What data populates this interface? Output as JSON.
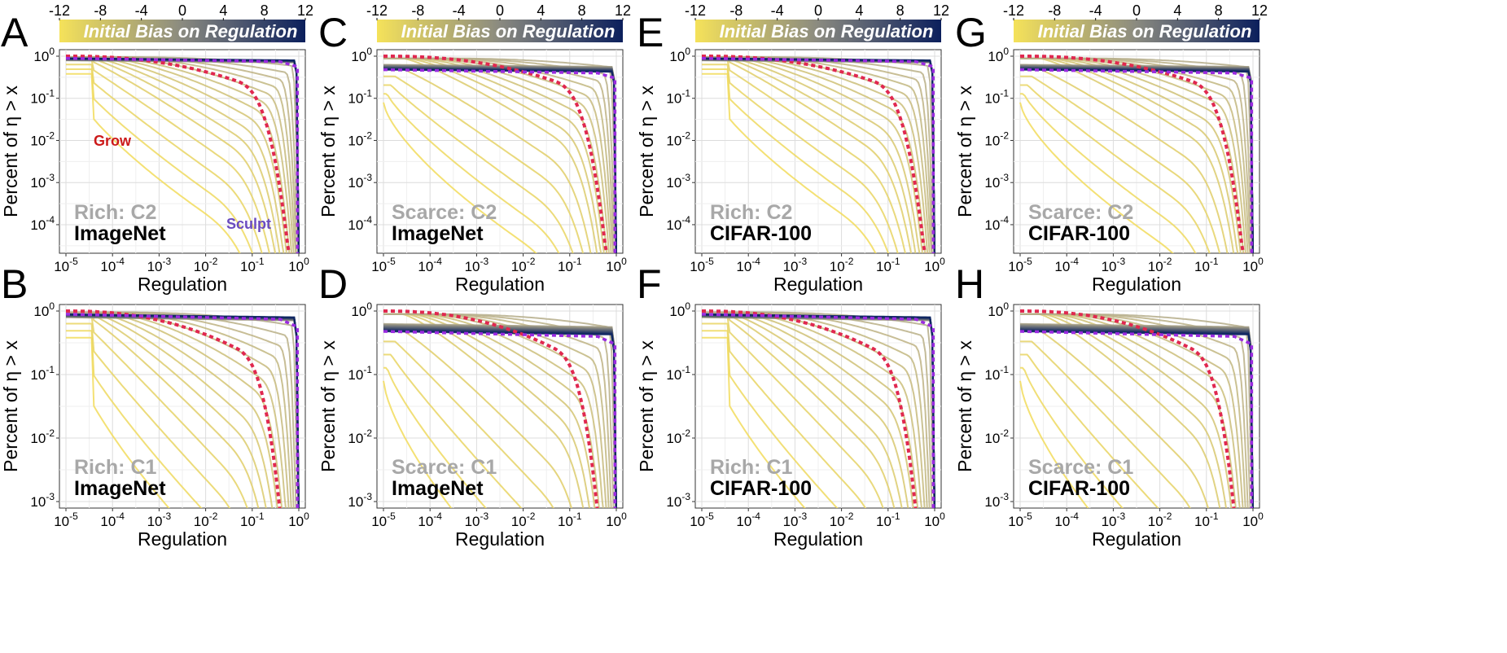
{
  "figure": {
    "colorbar_title": "Initial Bias on Regulation",
    "colorbar_ticks": [
      "-12",
      "-8",
      "-4",
      "0",
      "4",
      "8",
      "12"
    ],
    "colorbar_range": [
      -12,
      12
    ],
    "colors": {
      "low": "#f2dc5c",
      "mid": "#b3ab8c",
      "high": "#0d2460",
      "grow_dashed": "#e0284f",
      "sculpt_dashed": "#9a2be0"
    },
    "x_axis_title": "Regulation",
    "y_axis_title": "Percent of η > x",
    "grow_label": "Grow",
    "sculpt_label": "Sculpt"
  },
  "chart_data": [
    {
      "type": "line",
      "panel": "A",
      "condition": "Rich: C2",
      "dataset": "ImageNet",
      "regime": "rich",
      "xscale": "log",
      "xlim": [
        1e-05,
        1
      ],
      "yscale": "log",
      "ylim": [
        3e-05,
        1
      ],
      "xticks": [
        "10^-5",
        "10^-4",
        "10^-3",
        "10^-2",
        "10^-1",
        "10^0"
      ],
      "yticks": [
        "10^0",
        "10^-1",
        "10^-2",
        "10^-3",
        "10^-4"
      ]
    },
    {
      "type": "line",
      "panel": "B",
      "condition": "Rich: C1",
      "dataset": "ImageNet",
      "regime": "rich",
      "xscale": "log",
      "xlim": [
        1e-05,
        1
      ],
      "yscale": "log",
      "ylim": [
        0.001,
        1
      ],
      "xticks": [
        "10^-5",
        "10^-4",
        "10^-3",
        "10^-2",
        "10^-1",
        "10^0"
      ],
      "yticks": [
        "10^0",
        "10^-1",
        "10^-2",
        "10^-3"
      ]
    },
    {
      "type": "line",
      "panel": "C",
      "condition": "Scarce: C2",
      "dataset": "ImageNet",
      "regime": "scarce",
      "xscale": "log",
      "xlim": [
        1e-05,
        1
      ],
      "yscale": "log",
      "ylim": [
        3e-05,
        1
      ],
      "xticks": [
        "10^-5",
        "10^-4",
        "10^-3",
        "10^-2",
        "10^-1",
        "10^0"
      ],
      "yticks": [
        "10^0",
        "10^-1",
        "10^-2",
        "10^-3",
        "10^-4"
      ]
    },
    {
      "type": "line",
      "panel": "D",
      "condition": "Scarce: C1",
      "dataset": "ImageNet",
      "regime": "scarce",
      "xscale": "log",
      "xlim": [
        1e-05,
        1
      ],
      "yscale": "log",
      "ylim": [
        0.001,
        1
      ],
      "xticks": [
        "10^-5",
        "10^-4",
        "10^-3",
        "10^-2",
        "10^-1",
        "10^0"
      ],
      "yticks": [
        "10^0",
        "10^-1",
        "10^-2",
        "10^-3"
      ]
    },
    {
      "type": "line",
      "panel": "E",
      "condition": "Rich: C2",
      "dataset": "CIFAR-100",
      "regime": "rich",
      "xscale": "log",
      "xlim": [
        1e-05,
        1
      ],
      "yscale": "log",
      "ylim": [
        3e-05,
        1
      ],
      "xticks": [
        "10^-5",
        "10^-4",
        "10^-3",
        "10^-2",
        "10^-1",
        "10^0"
      ],
      "yticks": [
        "10^0",
        "10^-1",
        "10^-2",
        "10^-3",
        "10^-4"
      ]
    },
    {
      "type": "line",
      "panel": "F",
      "condition": "Rich: C1",
      "dataset": "CIFAR-100",
      "regime": "rich",
      "xscale": "log",
      "xlim": [
        1e-05,
        1
      ],
      "yscale": "log",
      "ylim": [
        0.001,
        1
      ],
      "xticks": [
        "10^-5",
        "10^-4",
        "10^-3",
        "10^-2",
        "10^-1",
        "10^0"
      ],
      "yticks": [
        "10^0",
        "10^-1",
        "10^-2",
        "10^-3"
      ]
    },
    {
      "type": "line",
      "panel": "G",
      "condition": "Scarce: C2",
      "dataset": "CIFAR-100",
      "regime": "scarce",
      "xscale": "log",
      "xlim": [
        1e-05,
        1
      ],
      "yscale": "log",
      "ylim": [
        3e-05,
        1
      ],
      "xticks": [
        "10^-5",
        "10^-4",
        "10^-3",
        "10^-2",
        "10^-1",
        "10^0"
      ],
      "yticks": [
        "10^0",
        "10^-1",
        "10^-2",
        "10^-3",
        "10^-4"
      ]
    },
    {
      "type": "line",
      "panel": "H",
      "condition": "Scarce: C1",
      "dataset": "CIFAR-100",
      "regime": "scarce",
      "xscale": "log",
      "xlim": [
        1e-05,
        1
      ],
      "yscale": "log",
      "ylim": [
        0.001,
        1
      ],
      "xticks": [
        "10^-5",
        "10^-4",
        "10^-3",
        "10^-2",
        "10^-1",
        "10^0"
      ],
      "yticks": [
        "10^0",
        "10^-1",
        "10^-2",
        "10^-3"
      ]
    }
  ]
}
